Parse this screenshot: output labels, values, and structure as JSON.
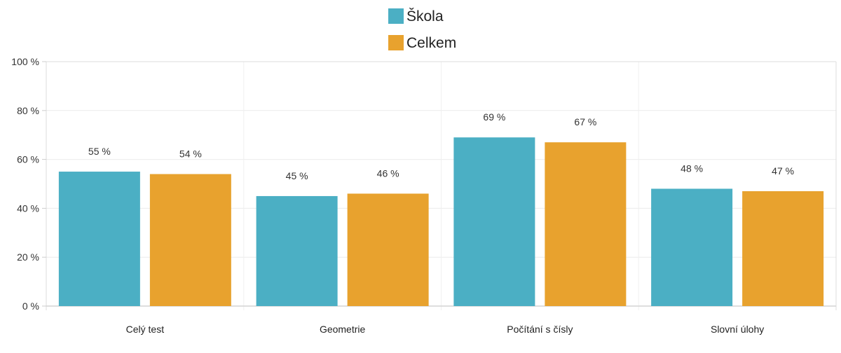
{
  "chart_data": {
    "type": "bar",
    "categories": [
      "Celý test",
      "Geometrie",
      "Počítání s čísly",
      "Slovní úlohy"
    ],
    "series": [
      {
        "name": "Škola",
        "color": "#4bafc4",
        "values": [
          55,
          45,
          69,
          48
        ],
        "labels": [
          "55 %",
          "45 %",
          "69 %",
          "48 %"
        ]
      },
      {
        "name": "Celkem",
        "color": "#e8a22e",
        "values": [
          54,
          46,
          67,
          47
        ],
        "labels": [
          "54 %",
          "46 %",
          "67 %",
          "47 %"
        ]
      }
    ],
    "ylim": [
      0,
      100
    ],
    "yticks": [
      0,
      20,
      40,
      60,
      80,
      100
    ],
    "ytick_labels": [
      "0 %",
      "20 %",
      "40 %",
      "60 %",
      "80 %",
      "100 %"
    ],
    "grid": true,
    "legend_position": "top-center"
  }
}
